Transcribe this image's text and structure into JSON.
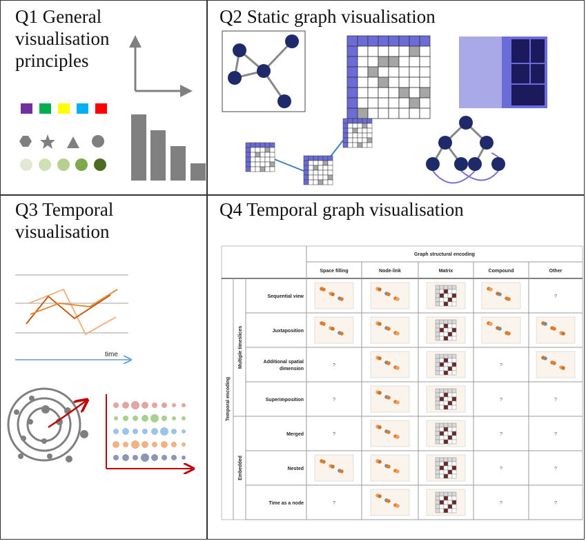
{
  "quadrants": {
    "q1": {
      "title": "Q1 General\nvisualisation\nprinciples"
    },
    "q2": {
      "title": "Q2 Static graph visualisation"
    },
    "q3": {
      "title": "Q3 Temporal\nvisualisation",
      "time_label": "time"
    },
    "q4": {
      "title": "Q4 Temporal graph visualisation"
    }
  },
  "q1_colors": [
    "#7030a0",
    "#00b050",
    "#ffff00",
    "#00b0f0",
    "#ff0000"
  ],
  "q4_table": {
    "header_group": "Graph structural encoding",
    "columns": [
      "Space filling",
      "Node-link",
      "Matrix",
      "Compound",
      "Other"
    ],
    "row_group_outer": "Temporal encoding",
    "row_groups": [
      {
        "label": "Multiple timeslices",
        "rows": [
          "Sequential view",
          "Juxtaposition",
          "Additional spatial dimension",
          "Superimposition"
        ]
      },
      {
        "label": "Embedded",
        "rows": [
          "Merged",
          "Nested",
          "Time as a node"
        ]
      }
    ],
    "unknown_mark": "?"
  }
}
